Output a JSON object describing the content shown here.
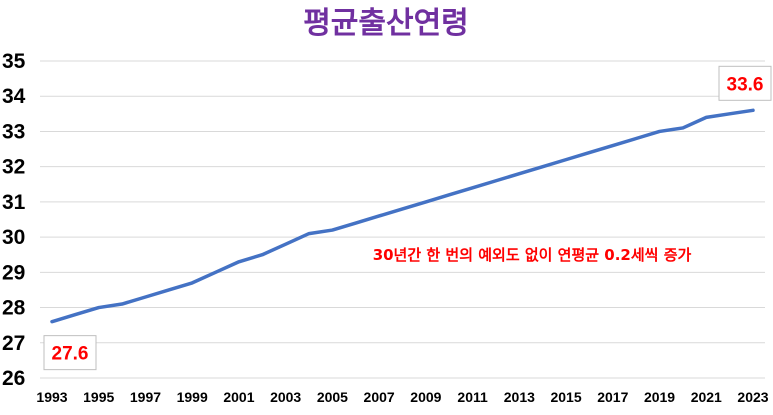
{
  "chart_data": {
    "type": "line",
    "title": "평균출산연령",
    "xlabel": "",
    "ylabel": "",
    "ylim": [
      26,
      35
    ],
    "yticks": [
      26,
      27,
      28,
      29,
      30,
      31,
      32,
      33,
      34,
      35
    ],
    "xticks": [
      1993,
      1995,
      1997,
      1999,
      2001,
      2003,
      2005,
      2007,
      2009,
      2011,
      2013,
      2015,
      2017,
      2019,
      2021,
      2023
    ],
    "grid": true,
    "x": [
      1993,
      1994,
      1995,
      1996,
      1997,
      1998,
      1999,
      2000,
      2001,
      2002,
      2003,
      2004,
      2005,
      2006,
      2007,
      2008,
      2009,
      2010,
      2011,
      2012,
      2013,
      2014,
      2015,
      2016,
      2017,
      2018,
      2019,
      2020,
      2021,
      2022,
      2023
    ],
    "series": [
      {
        "values": [
          27.6,
          27.8,
          28.0,
          28.1,
          28.3,
          28.5,
          28.7,
          29.0,
          29.3,
          29.5,
          29.8,
          30.1,
          30.2,
          30.4,
          30.6,
          30.8,
          31.0,
          31.2,
          31.4,
          31.6,
          31.8,
          32.0,
          32.2,
          32.4,
          32.6,
          32.8,
          33.0,
          33.1,
          33.4,
          33.5,
          33.6
        ]
      }
    ],
    "callouts": [
      {
        "x": 1993,
        "label": "27.6"
      },
      {
        "x": 2023,
        "label": "33.6"
      }
    ],
    "annotation": "30년간 한 번의 예외도 없이 연평균 0.2세씩 증가"
  },
  "colors": {
    "title": "#7030a0",
    "line": "#4472c4",
    "highlight": "#ff0000"
  }
}
